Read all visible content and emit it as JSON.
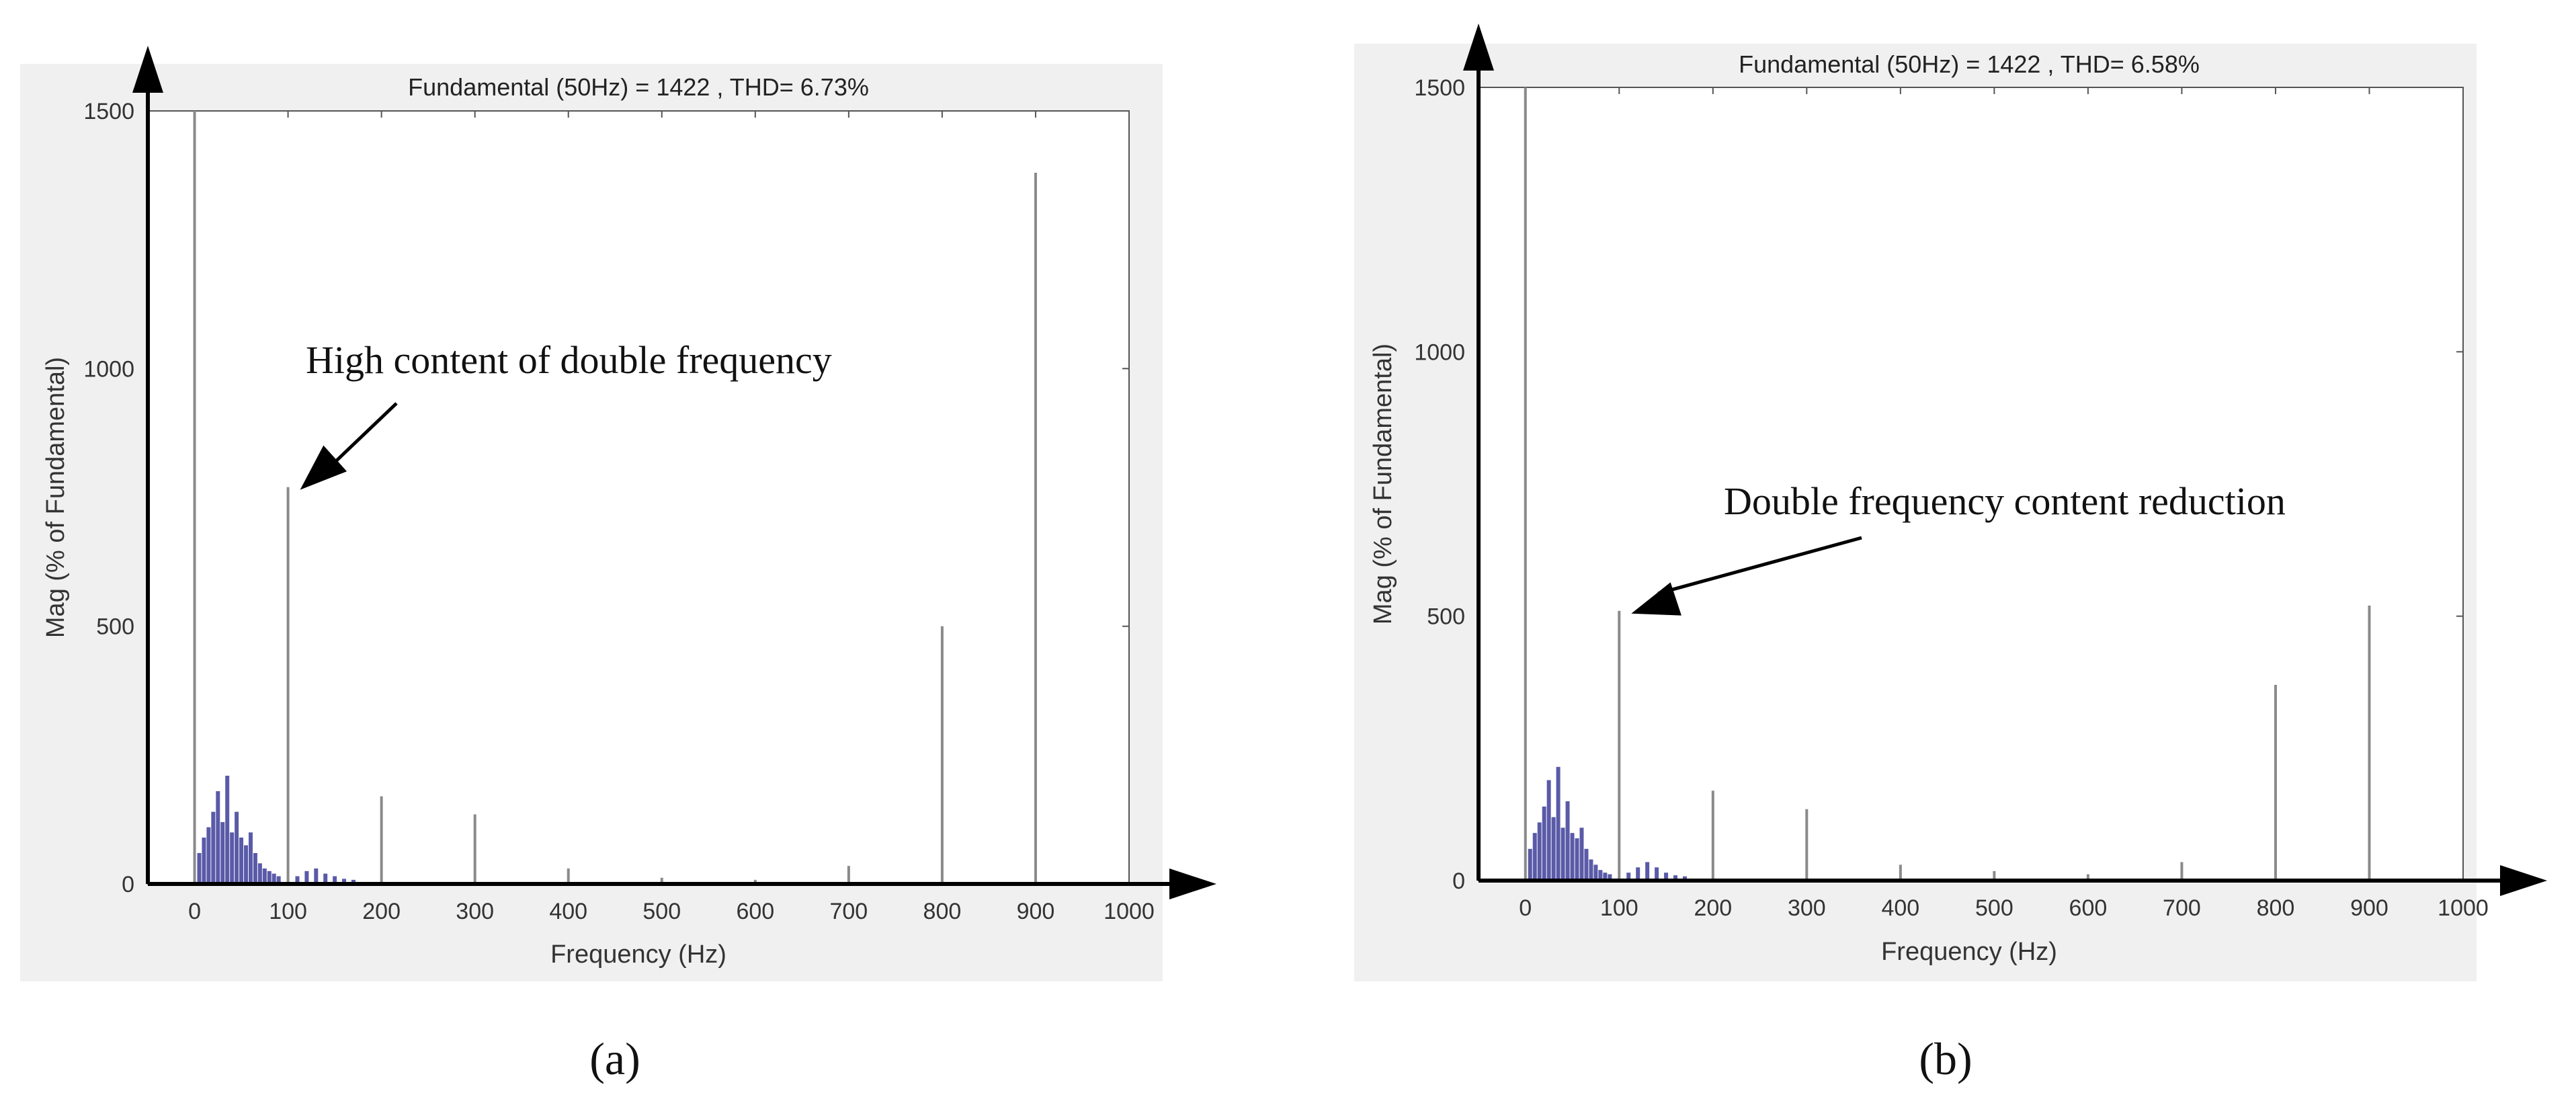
{
  "chart_data": [
    {
      "type": "bar",
      "panel_label": "(a)",
      "title": "Fundamental (50Hz) = 1422       , THD= 6.73%",
      "xlabel": "Frequency (Hz)",
      "ylabel": "Mag (% of Fundamental)",
      "xlim": [
        -50,
        1000
      ],
      "ylim": [
        0,
        1500
      ],
      "x_ticks": [
        "0",
        "100",
        "200",
        "300",
        "400",
        "500",
        "600",
        "700",
        "800",
        "900",
        "1000"
      ],
      "y_ticks": [
        "0",
        "500",
        "1000",
        "1500"
      ],
      "grid": false,
      "annotation": {
        "text": "High content of double frequency",
        "points_to_x": 100,
        "points_to_y": 770
      },
      "bar_color": "#8a8a8a",
      "noise_color": "#5a5aa8",
      "bars": [
        {
          "x": 0,
          "y": 1500
        },
        {
          "x": 100,
          "y": 770
        },
        {
          "x": 200,
          "y": 170
        },
        {
          "x": 300,
          "y": 135
        },
        {
          "x": 400,
          "y": 30
        },
        {
          "x": 500,
          "y": 12
        },
        {
          "x": 600,
          "y": 8
        },
        {
          "x": 700,
          "y": 35
        },
        {
          "x": 800,
          "y": 500
        },
        {
          "x": 900,
          "y": 1380
        }
      ],
      "low_freq_components": [
        {
          "x": 5,
          "y": 60
        },
        {
          "x": 10,
          "y": 90
        },
        {
          "x": 15,
          "y": 110
        },
        {
          "x": 20,
          "y": 140
        },
        {
          "x": 25,
          "y": 180
        },
        {
          "x": 30,
          "y": 120
        },
        {
          "x": 35,
          "y": 210
        },
        {
          "x": 40,
          "y": 100
        },
        {
          "x": 45,
          "y": 140
        },
        {
          "x": 50,
          "y": 90
        },
        {
          "x": 55,
          "y": 75
        },
        {
          "x": 60,
          "y": 100
        },
        {
          "x": 65,
          "y": 60
        },
        {
          "x": 70,
          "y": 40
        },
        {
          "x": 75,
          "y": 30
        },
        {
          "x": 80,
          "y": 25
        },
        {
          "x": 85,
          "y": 20
        },
        {
          "x": 90,
          "y": 15
        },
        {
          "x": 110,
          "y": 15
        },
        {
          "x": 120,
          "y": 25
        },
        {
          "x": 130,
          "y": 30
        },
        {
          "x": 140,
          "y": 20
        },
        {
          "x": 150,
          "y": 15
        },
        {
          "x": 160,
          "y": 10
        },
        {
          "x": 170,
          "y": 8
        }
      ]
    },
    {
      "type": "bar",
      "panel_label": "(b)",
      "title": "Fundamental (50Hz) = 1422       , THD= 6.58%",
      "xlabel": "Frequency (Hz)",
      "ylabel": "Mag (% of Fundamental)",
      "xlim": [
        -50,
        1000
      ],
      "ylim": [
        0,
        1500
      ],
      "x_ticks": [
        "0",
        "100",
        "200",
        "300",
        "400",
        "500",
        "600",
        "700",
        "800",
        "900",
        "1000"
      ],
      "y_ticks": [
        "0",
        "500",
        "1000",
        "1500"
      ],
      "grid": false,
      "annotation": {
        "text": "Double frequency content reduction",
        "points_to_x": 100,
        "points_to_y": 510
      },
      "bar_color": "#8a8a8a",
      "noise_color": "#5a5aa8",
      "bars": [
        {
          "x": 0,
          "y": 1500
        },
        {
          "x": 100,
          "y": 510
        },
        {
          "x": 200,
          "y": 170
        },
        {
          "x": 300,
          "y": 135
        },
        {
          "x": 400,
          "y": 30
        },
        {
          "x": 500,
          "y": 18
        },
        {
          "x": 600,
          "y": 12
        },
        {
          "x": 700,
          "y": 35
        },
        {
          "x": 800,
          "y": 370
        },
        {
          "x": 900,
          "y": 520
        }
      ],
      "low_freq_components": [
        {
          "x": 5,
          "y": 60
        },
        {
          "x": 10,
          "y": 90
        },
        {
          "x": 15,
          "y": 110
        },
        {
          "x": 20,
          "y": 140
        },
        {
          "x": 25,
          "y": 190
        },
        {
          "x": 30,
          "y": 120
        },
        {
          "x": 35,
          "y": 215
        },
        {
          "x": 40,
          "y": 100
        },
        {
          "x": 45,
          "y": 150
        },
        {
          "x": 50,
          "y": 90
        },
        {
          "x": 55,
          "y": 80
        },
        {
          "x": 60,
          "y": 100
        },
        {
          "x": 65,
          "y": 60
        },
        {
          "x": 70,
          "y": 40
        },
        {
          "x": 75,
          "y": 30
        },
        {
          "x": 80,
          "y": 20
        },
        {
          "x": 85,
          "y": 15
        },
        {
          "x": 90,
          "y": 12
        },
        {
          "x": 110,
          "y": 15
        },
        {
          "x": 120,
          "y": 25
        },
        {
          "x": 130,
          "y": 35
        },
        {
          "x": 140,
          "y": 25
        },
        {
          "x": 150,
          "y": 15
        },
        {
          "x": 160,
          "y": 10
        },
        {
          "x": 170,
          "y": 8
        }
      ]
    }
  ]
}
